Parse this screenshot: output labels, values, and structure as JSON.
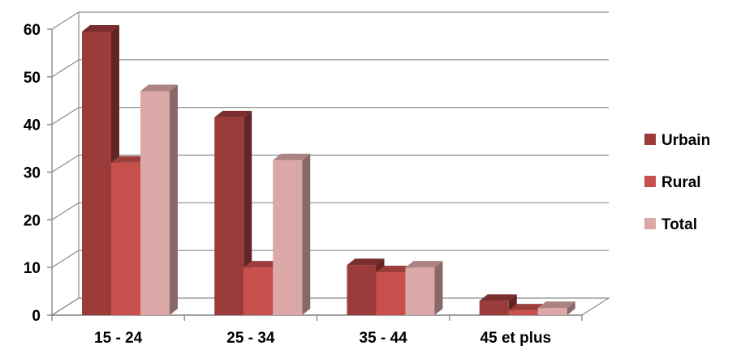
{
  "chart_data": {
    "type": "bar",
    "style": "3d-clustered-column",
    "categories": [
      "15 - 24",
      "25 - 34",
      "35 - 44",
      "45 et plus"
    ],
    "series": [
      {
        "name": "Urbain",
        "values": [
          59.5,
          41.5,
          10.5,
          3
        ]
      },
      {
        "name": "Rural",
        "values": [
          32,
          10,
          9,
          1
        ]
      },
      {
        "name": "Total",
        "values": [
          47,
          32.5,
          10,
          1.5
        ]
      }
    ],
    "y_ticks": [
      "0",
      "10",
      "20",
      "30",
      "40",
      "50",
      "60"
    ],
    "ylim": [
      0,
      60
    ],
    "grid": true,
    "legend_position": "right",
    "colors": {
      "Urbain": "#9b3b3a",
      "Rural": "#c8504c",
      "Total": "#dba8a7",
      "grid": "#8a8a8a"
    }
  }
}
